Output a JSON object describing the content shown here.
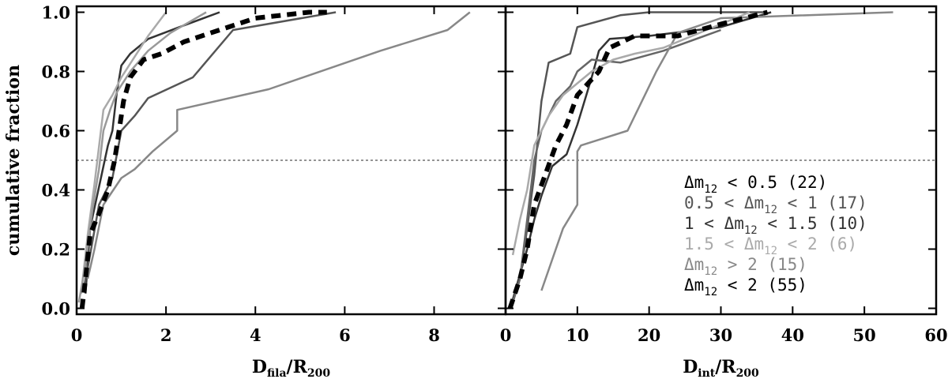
{
  "chart_data": [
    {
      "type": "line",
      "xlabel_main": "D",
      "xlabel_sub": "fila",
      "xlabel_rest": "/R",
      "xlabel_sub2": "200",
      "ylabel": "cumulative fraction",
      "xlim": [
        0,
        9.6
      ],
      "ylim": [
        -0.02,
        1.02
      ],
      "xticks": [
        "0",
        "2",
        "4",
        "6",
        "8"
      ],
      "xtick_values": [
        0,
        2,
        4,
        6,
        8
      ],
      "yticks": [
        "0.0",
        "0.2",
        "0.4",
        "0.6",
        "0.8",
        "1.0"
      ],
      "ytick_values": [
        0.0,
        0.2,
        0.4,
        0.6,
        0.8,
        1.0
      ],
      "hline": 0.5,
      "series": [
        {
          "color": "#333333",
          "width": 2.5,
          "dash": "",
          "x": [
            0.2,
            0.3,
            0.5,
            0.7,
            0.8,
            0.9,
            1.0,
            1.2,
            1.6,
            2.3,
            3.2
          ],
          "y": [
            0.05,
            0.27,
            0.41,
            0.55,
            0.6,
            0.73,
            0.82,
            0.86,
            0.91,
            0.95,
            1.0
          ]
        },
        {
          "color": "#555555",
          "width": 2.5,
          "dash": "",
          "x": [
            0.15,
            0.3,
            0.5,
            0.8,
            1.0,
            1.3,
            1.6,
            2.6,
            3.5,
            5.8
          ],
          "y": [
            0.06,
            0.18,
            0.35,
            0.44,
            0.6,
            0.65,
            0.71,
            0.78,
            0.94,
            1.0
          ]
        },
        {
          "color": "#888888",
          "width": 2.5,
          "dash": "",
          "x": [
            0.25,
            0.4,
            0.6,
            1.0,
            1.3,
            1.7,
            2.25,
            2.25,
            4.3,
            6.8,
            8.3,
            8.8
          ],
          "y": [
            0.1,
            0.2,
            0.35,
            0.44,
            0.47,
            0.53,
            0.6,
            0.67,
            0.74,
            0.87,
            0.94,
            1.0
          ]
        },
        {
          "color": "#aaaaaa",
          "width": 2.5,
          "dash": "",
          "x": [
            0.1,
            0.25,
            0.4,
            0.6,
            0.8,
            1.0,
            1.3,
            1.6,
            2.0
          ],
          "y": [
            0.05,
            0.25,
            0.42,
            0.67,
            0.72,
            0.78,
            0.85,
            0.92,
            1.0
          ]
        },
        {
          "color": "#999999",
          "width": 2.5,
          "dash": "",
          "x": [
            0.05,
            0.2,
            0.35,
            0.5,
            0.6,
            0.75,
            0.9,
            1.2,
            1.6,
            2.1,
            2.9
          ],
          "y": [
            0.02,
            0.15,
            0.33,
            0.47,
            0.6,
            0.67,
            0.73,
            0.8,
            0.87,
            0.93,
            1.0
          ]
        },
        {
          "color": "#000000",
          "width": 6,
          "dash": "12,8",
          "x": [
            0.12,
            0.2,
            0.3,
            0.5,
            0.7,
            0.85,
            0.95,
            1.05,
            1.2,
            1.5,
            1.9,
            2.4,
            3.0,
            4.0,
            5.2,
            5.6
          ],
          "y": [
            0.0,
            0.1,
            0.25,
            0.32,
            0.4,
            0.5,
            0.6,
            0.7,
            0.78,
            0.84,
            0.86,
            0.9,
            0.93,
            0.98,
            1.0,
            1.0
          ]
        }
      ]
    },
    {
      "type": "line",
      "xlabel_main": "D",
      "xlabel_sub": "int",
      "xlabel_rest": "/R",
      "xlabel_sub2": "200",
      "xlim": [
        0,
        60
      ],
      "ylim": [
        -0.02,
        1.02
      ],
      "xticks": [
        "0",
        "10",
        "20",
        "30",
        "40",
        "50",
        "60"
      ],
      "xtick_values": [
        0,
        10,
        20,
        30,
        40,
        50,
        60
      ],
      "hline": 0.5,
      "series": [
        {
          "color": "#333333",
          "width": 2.5,
          "dash": "",
          "x": [
            1,
            3,
            4,
            5,
            6.5,
            8.5,
            10,
            12,
            13,
            14.5,
            20,
            30,
            37
          ],
          "y": [
            0.03,
            0.2,
            0.3,
            0.38,
            0.48,
            0.52,
            0.62,
            0.78,
            0.87,
            0.91,
            0.92,
            0.95,
            1.0
          ]
        },
        {
          "color": "#555555",
          "width": 2.5,
          "dash": "",
          "x": [
            1,
            2,
            3,
            4,
            5,
            6,
            9,
            10,
            16,
            20,
            27,
            36
          ],
          "y": [
            0.02,
            0.1,
            0.27,
            0.45,
            0.7,
            0.83,
            0.86,
            0.95,
            0.99,
            1.0,
            1.0,
            1.0
          ]
        },
        {
          "color": "#666666",
          "width": 2.5,
          "dash": "",
          "x": [
            1,
            2,
            3,
            4,
            5,
            7,
            9,
            10,
            12,
            16,
            22,
            30
          ],
          "y": [
            0.02,
            0.1,
            0.3,
            0.5,
            0.6,
            0.7,
            0.75,
            0.8,
            0.84,
            0.83,
            0.87,
            0.94
          ]
        },
        {
          "color": "#888888",
          "width": 2.5,
          "dash": "",
          "x": [
            5,
            7,
            8,
            10,
            10,
            10.5,
            17,
            20,
            21,
            24,
            30,
            54
          ],
          "y": [
            0.06,
            0.2,
            0.27,
            0.35,
            0.53,
            0.55,
            0.6,
            0.75,
            0.8,
            0.93,
            0.98,
            1.0
          ]
        },
        {
          "color": "#aaaaaa",
          "width": 2.5,
          "dash": "",
          "x": [
            1,
            2,
            3,
            4,
            6,
            8,
            10,
            12,
            15,
            18,
            22,
            28,
            34
          ],
          "y": [
            0.18,
            0.3,
            0.4,
            0.55,
            0.65,
            0.72,
            0.76,
            0.8,
            0.84,
            0.86,
            0.88,
            0.94,
            1.0
          ]
        },
        {
          "color": "#000000",
          "width": 6,
          "dash": "12,8",
          "x": [
            0.6,
            2,
            3,
            4,
            5.5,
            7,
            8.5,
            10,
            11.5,
            13,
            14.5,
            18,
            24,
            30,
            36.5
          ],
          "y": [
            0.0,
            0.1,
            0.2,
            0.35,
            0.45,
            0.55,
            0.62,
            0.72,
            0.76,
            0.8,
            0.88,
            0.92,
            0.92,
            0.96,
            1.0
          ]
        }
      ],
      "legend": [
        {
          "pre": "Δm",
          "sub": "12",
          "post": " < 0.5 (22)",
          "color": "#000000"
        },
        {
          "pre": "0.5 < Δm",
          "sub": "12",
          "post": " < 1 (17)",
          "color": "#555555"
        },
        {
          "pre": "1 < Δm",
          "sub": "12",
          "post": " < 1.5 (10)",
          "color": "#333333"
        },
        {
          "pre": "1.5 < Δm",
          "sub": "12",
          "post": " < 2 (6)",
          "color": "#aaaaaa"
        },
        {
          "pre": "Δm",
          "sub": "12",
          "post": " > 2 (15)",
          "color": "#888888"
        },
        {
          "pre": "Δm",
          "sub": "12",
          "post": " < 2 (55)",
          "color": "#000000"
        }
      ]
    }
  ]
}
